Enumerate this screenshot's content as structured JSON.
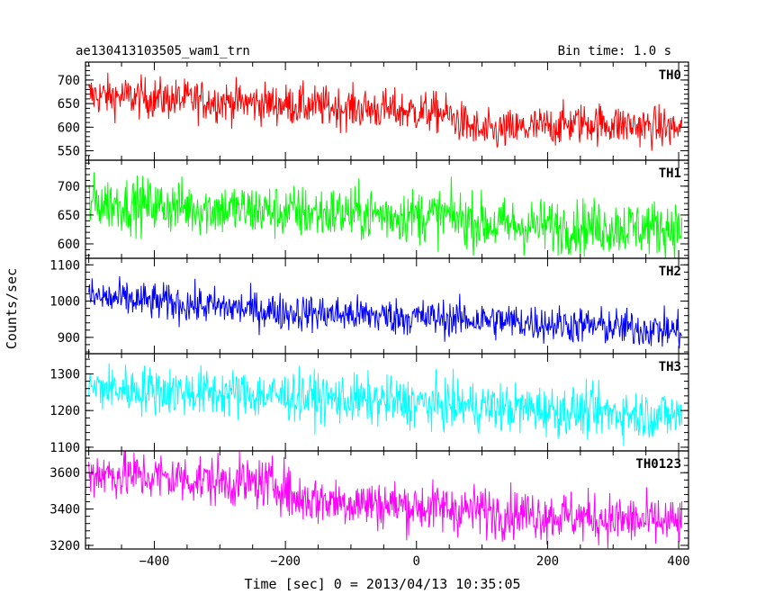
{
  "chart_data": {
    "type": "line",
    "title": "ae130413103505_wam1_trn",
    "bin_time": "Bin time: 1.0 s",
    "xlabel": "Time [sec] 0 = 2013/04/13 10:35:05",
    "ylabel": "Counts/sec",
    "xlim": [
      -505,
      415
    ],
    "x_tick_labels": [
      "−400",
      "−200",
      "0",
      "200",
      "400"
    ],
    "x_ticks": [
      -400,
      -200,
      0,
      200,
      400
    ],
    "grid": false,
    "panels": [
      {
        "name": "TH0",
        "color": "#ff0000",
        "ylim": [
          530,
          738
        ],
        "y_ticks": [
          550,
          600,
          650,
          700
        ],
        "y_tick_labels": [
          "550",
          "600",
          "650",
          "700"
        ],
        "trend": [
          [
            -500,
            668
          ],
          [
            -200,
            648
          ],
          [
            40,
            630
          ],
          [
            100,
            588
          ],
          [
            260,
            610
          ],
          [
            405,
            596
          ]
        ],
        "noise": 22
      },
      {
        "name": "TH1",
        "color": "#00ff00",
        "ylim": [
          575,
          745
        ],
        "y_ticks": [
          600,
          650,
          700
        ],
        "y_tick_labels": [
          "600",
          "650",
          "700"
        ],
        "trend": [
          [
            -500,
            672
          ],
          [
            -200,
            655
          ],
          [
            50,
            648
          ],
          [
            120,
            632
          ],
          [
            405,
            628
          ]
        ],
        "noise": 24
      },
      {
        "name": "TH2",
        "color": "#0000ff",
        "ylim": [
          855,
          1118
        ],
        "y_ticks": [
          900,
          1000,
          1100
        ],
        "y_tick_labels": [
          "900",
          "1000",
          "1100"
        ],
        "trend": [
          [
            -500,
            1012
          ],
          [
            -200,
            970
          ],
          [
            100,
            948
          ],
          [
            405,
            918
          ]
        ],
        "noise": 26
      },
      {
        "name": "TH3",
        "color": "#00ffff",
        "ylim": [
          1090,
          1355
        ],
        "y_ticks": [
          1100,
          1200,
          1300
        ],
        "y_tick_labels": [
          "1100",
          "1200",
          "1300"
        ],
        "trend": [
          [
            -500,
            1262
          ],
          [
            -200,
            1240
          ],
          [
            100,
            1210
          ],
          [
            405,
            1185
          ]
        ],
        "noise": 34
      },
      {
        "name": "TH0123",
        "color": "#ff00ff",
        "ylim": [
          3180,
          3720
        ],
        "y_ticks": [
          3200,
          3400,
          3600
        ],
        "y_tick_labels": [
          "3200",
          "3400",
          "3600"
        ],
        "trend": [
          [
            -500,
            3600
          ],
          [
            -200,
            3530
          ],
          [
            -190,
            3460
          ],
          [
            100,
            3390
          ],
          [
            405,
            3320
          ]
        ],
        "noise": 70
      }
    ]
  }
}
